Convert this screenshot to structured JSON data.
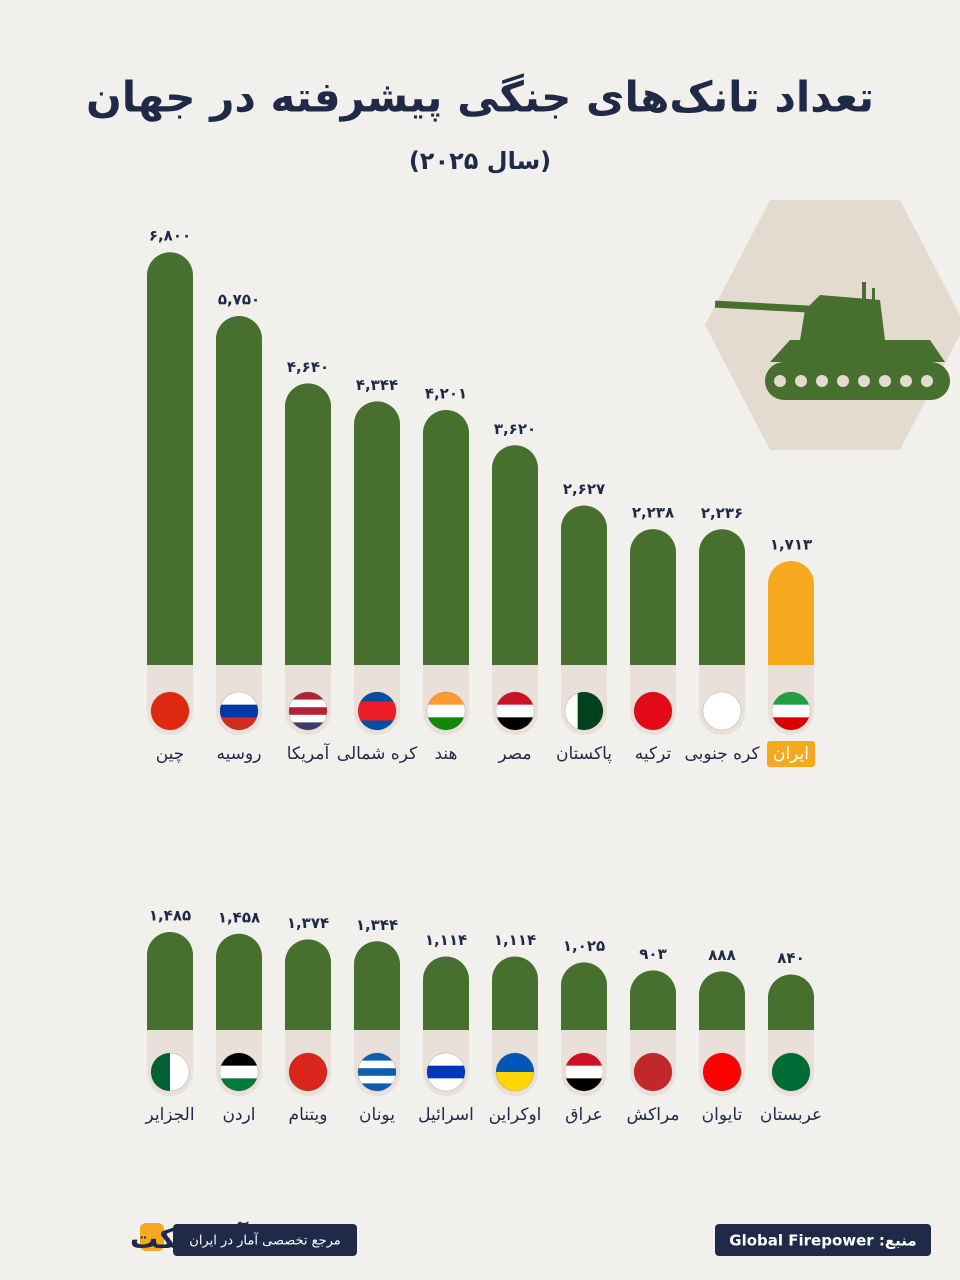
{
  "chart_data": [
    {
      "type": "bar",
      "title": "تعداد تانک‌های جنگی پیشرفته در جهان",
      "subtitle": "(سال ۲۰۲۵)",
      "categories": [
        "چین",
        "روسیه",
        "آمریکا",
        "کره شمالی",
        "هند",
        "مصر",
        "پاکستان",
        "ترکیه",
        "کره جنوبی",
        "ایران"
      ],
      "values": [
        6800,
        5750,
        4640,
        4344,
        4201,
        3620,
        2627,
        2238,
        2236,
        1713
      ],
      "value_labels": [
        "۶,۸۰۰",
        "۵,۷۵۰",
        "۴,۶۴۰",
        "۴,۳۴۴",
        "۴,۲۰۱",
        "۳,۶۲۰",
        "۲,۶۲۷",
        "۲,۲۳۸",
        "۲,۲۳۶",
        "۱,۷۱۳"
      ],
      "colors": [
        "#476f2e",
        "#476f2e",
        "#476f2e",
        "#476f2e",
        "#476f2e",
        "#476f2e",
        "#476f2e",
        "#476f2e",
        "#476f2e",
        "#f6a91f"
      ]
    },
    {
      "type": "bar",
      "categories": [
        "الجزایر",
        "اردن",
        "ویتنام",
        "یونان",
        "اسرائیل",
        "اوکراین",
        "عراق",
        "مراکش",
        "تایوان",
        "عربستان"
      ],
      "values": [
        1485,
        1458,
        1374,
        1344,
        1114,
        1114,
        1025,
        903,
        888,
        840
      ],
      "value_labels": [
        "۱,۴۸۵",
        "۱,۴۵۸",
        "۱,۳۷۴",
        "۱,۳۴۴",
        "۱,۱۱۴",
        "۱,۱۱۴",
        "۱,۰۲۵",
        "۹۰۳",
        "۸۸۸",
        "۸۴۰"
      ],
      "colors": [
        "#476f2e",
        "#476f2e",
        "#476f2e",
        "#476f2e",
        "#476f2e",
        "#476f2e",
        "#476f2e",
        "#476f2e",
        "#476f2e",
        "#476f2e"
      ]
    }
  ],
  "footer": {
    "source": "منبع: Global Firepower",
    "tagline": "مرجع تخصصی آمار در ایران",
    "logo": "آمارفکت"
  }
}
